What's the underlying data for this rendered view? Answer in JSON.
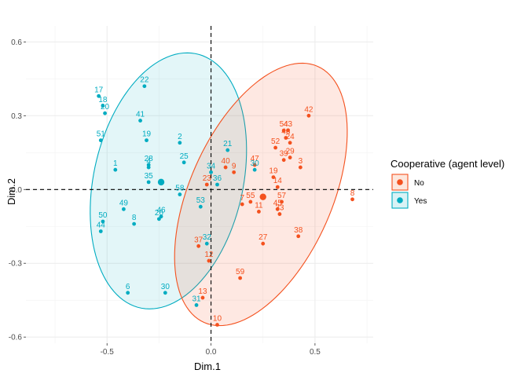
{
  "chart_data": {
    "type": "scatter",
    "xlabel": "Dim.1",
    "ylabel": "Dim.2",
    "xlim": [
      -0.89,
      0.78
    ],
    "ylim": [
      -0.625,
      0.665
    ],
    "x_ticks": [
      -0.5,
      0.0,
      0.5
    ],
    "x_tick_labels": [
      "-0.5",
      "0.0",
      "0.5"
    ],
    "y_ticks": [
      -0.6,
      -0.3,
      0.0,
      0.3,
      0.6
    ],
    "y_tick_labels": [
      "-0.6",
      "-0.3",
      "0.0",
      "0.3",
      "0.6"
    ],
    "grid": true,
    "reference_lines": {
      "x": 0,
      "y": 0,
      "style": "dashed"
    },
    "legend": {
      "title": "Cooperative (agent level)",
      "position": "right"
    },
    "series": [
      {
        "name": "No",
        "color": "#f4511e",
        "centroid": [
          0.25,
          -0.03
        ],
        "ellipse": {
          "center": [
            0.24,
            -0.02
          ],
          "rx": 0.59,
          "ry": 0.33,
          "angle_deg": 59
        },
        "points": [
          {
            "label": "42",
            "x": 0.47,
            "y": 0.3
          },
          {
            "label": "54",
            "x": 0.35,
            "y": 0.24
          },
          {
            "label": "43",
            "x": 0.37,
            "y": 0.24
          },
          {
            "label": "52",
            "x": 0.31,
            "y": 0.17
          },
          {
            "label": "24",
            "x": 0.38,
            "y": 0.19
          },
          {
            "label": "29",
            "x": 0.38,
            "y": 0.13
          },
          {
            "label": "39",
            "x": 0.35,
            "y": 0.12
          },
          {
            "label": "48",
            "x": 0.36,
            "y": 0.21
          },
          {
            "label": "3",
            "x": 0.43,
            "y": 0.09
          },
          {
            "label": "19",
            "x": 0.3,
            "y": 0.05
          },
          {
            "label": "14",
            "x": 0.32,
            "y": 0.01
          },
          {
            "label": "40",
            "x": 0.07,
            "y": 0.09
          },
          {
            "label": "9",
            "x": 0.11,
            "y": 0.07
          },
          {
            "label": "47",
            "x": 0.21,
            "y": 0.1
          },
          {
            "label": "23",
            "x": -0.02,
            "y": 0.02
          },
          {
            "label": "8",
            "x": 0.68,
            "y": -0.04
          },
          {
            "label": "7",
            "x": 0.15,
            "y": -0.06
          },
          {
            "label": "55",
            "x": 0.19,
            "y": -0.05
          },
          {
            "label": "57",
            "x": 0.34,
            "y": -0.05
          },
          {
            "label": "11",
            "x": 0.23,
            "y": -0.09
          },
          {
            "label": "45",
            "x": 0.32,
            "y": -0.08
          },
          {
            "label": "33",
            "x": 0.33,
            "y": -0.1
          },
          {
            "label": "27",
            "x": 0.25,
            "y": -0.22
          },
          {
            "label": "38",
            "x": 0.42,
            "y": -0.19
          },
          {
            "label": "37",
            "x": -0.06,
            "y": -0.23
          },
          {
            "label": "12",
            "x": -0.01,
            "y": -0.29
          },
          {
            "label": "59",
            "x": 0.14,
            "y": -0.36
          },
          {
            "label": "13",
            "x": -0.04,
            "y": -0.44
          },
          {
            "label": "10",
            "x": 0.03,
            "y": -0.55
          }
        ]
      },
      {
        "name": "Yes",
        "color": "#00acc1",
        "centroid": [
          -0.24,
          0.03
        ],
        "ellipse": {
          "center": [
            -0.205,
            0.035
          ],
          "rx": 0.535,
          "ry": 0.355,
          "angle_deg": 72
        },
        "points": [
          {
            "label": "17",
            "x": -0.54,
            "y": 0.38
          },
          {
            "label": "18",
            "x": -0.52,
            "y": 0.34
          },
          {
            "label": "20",
            "x": -0.51,
            "y": 0.31
          },
          {
            "label": "22",
            "x": -0.32,
            "y": 0.42
          },
          {
            "label": "41",
            "x": -0.34,
            "y": 0.28
          },
          {
            "label": "19",
            "x": -0.31,
            "y": 0.2
          },
          {
            "label": "51",
            "x": -0.53,
            "y": 0.2
          },
          {
            "label": "2",
            "x": -0.15,
            "y": 0.19
          },
          {
            "label": "1",
            "x": -0.46,
            "y": 0.08
          },
          {
            "label": "28",
            "x": -0.3,
            "y": 0.1
          },
          {
            "label": "4",
            "x": -0.3,
            "y": 0.09
          },
          {
            "label": "25",
            "x": -0.13,
            "y": 0.11
          },
          {
            "label": "35",
            "x": -0.3,
            "y": 0.03
          },
          {
            "label": "58",
            "x": -0.15,
            "y": -0.02
          },
          {
            "label": "21",
            "x": 0.08,
            "y": 0.16
          },
          {
            "label": "34",
            "x": 0.0,
            "y": 0.07
          },
          {
            "label": "36",
            "x": 0.03,
            "y": 0.02
          },
          {
            "label": "30",
            "x": 0.21,
            "y": 0.08
          },
          {
            "label": "53",
            "x": -0.05,
            "y": -0.07
          },
          {
            "label": "49",
            "x": -0.42,
            "y": -0.08
          },
          {
            "label": "50",
            "x": -0.52,
            "y": -0.13
          },
          {
            "label": "44",
            "x": -0.53,
            "y": -0.17
          },
          {
            "label": "8",
            "x": -0.37,
            "y": -0.14
          },
          {
            "label": "26",
            "x": -0.25,
            "y": -0.12
          },
          {
            "label": "46",
            "x": -0.24,
            "y": -0.11
          },
          {
            "label": "32",
            "x": -0.02,
            "y": -0.22
          },
          {
            "label": "6",
            "x": -0.4,
            "y": -0.42
          },
          {
            "label": "30",
            "x": -0.22,
            "y": -0.42
          },
          {
            "label": "31",
            "x": -0.07,
            "y": -0.47
          }
        ]
      }
    ]
  }
}
